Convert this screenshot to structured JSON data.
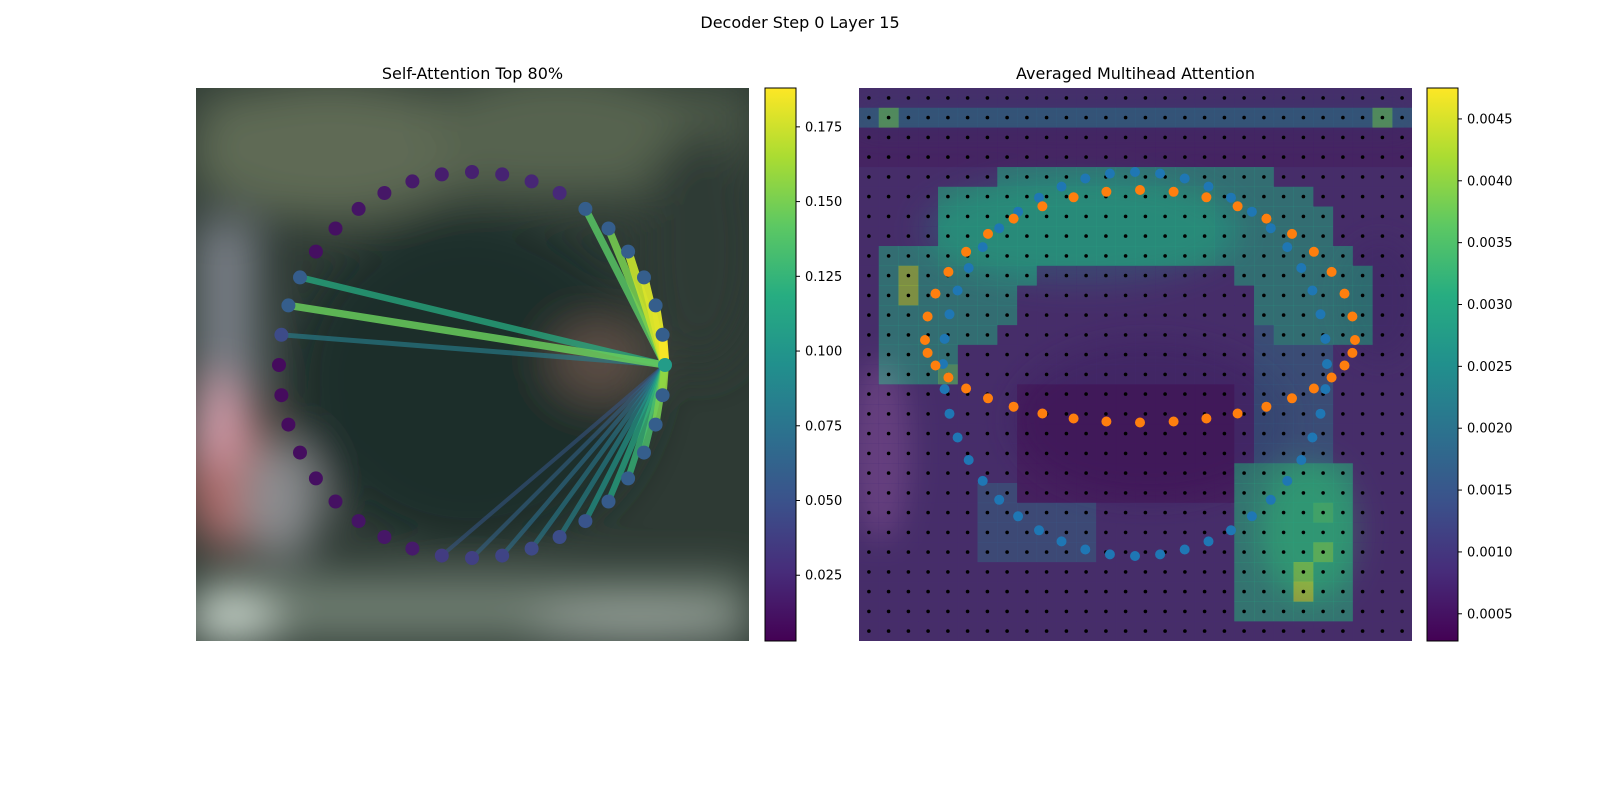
{
  "figure": {
    "suptitle": "Decoder Step 0 Layer 15"
  },
  "chart_data": [
    {
      "type": "network",
      "title": "Self-Attention Top 80%",
      "node_count": 40,
      "query_node": 0,
      "node_layout": "circle",
      "edges": [
        {
          "to": 1,
          "weight": 0.186
        },
        {
          "to": 2,
          "weight": 0.18
        },
        {
          "to": 3,
          "weight": 0.178
        },
        {
          "to": 4,
          "weight": 0.172
        },
        {
          "to": 5,
          "weight": 0.15
        },
        {
          "to": 6,
          "weight": 0.14
        },
        {
          "to": 39,
          "weight": 0.158
        },
        {
          "to": 38,
          "weight": 0.15
        },
        {
          "to": 37,
          "weight": 0.135
        },
        {
          "to": 36,
          "weight": 0.125
        },
        {
          "to": 35,
          "weight": 0.113
        },
        {
          "to": 34,
          "weight": 0.1
        },
        {
          "to": 33,
          "weight": 0.085
        },
        {
          "to": 32,
          "weight": 0.078
        },
        {
          "to": 31,
          "weight": 0.07
        },
        {
          "to": 30,
          "weight": 0.062
        },
        {
          "to": 29,
          "weight": 0.055
        },
        {
          "to": 19,
          "weight": 0.082
        },
        {
          "to": 18,
          "weight": 0.145
        },
        {
          "to": 17,
          "weight": 0.118
        }
      ],
      "colorbar": {
        "colormap": "viridis",
        "range": [
          0.003,
          0.188
        ],
        "ticks": [
          "0.025",
          "0.050",
          "0.075",
          "0.100",
          "0.125",
          "0.150",
          "0.175"
        ],
        "tick_values": [
          0.025,
          0.05,
          0.075,
          0.1,
          0.125,
          0.15,
          0.175
        ]
      }
    },
    {
      "type": "heatmap",
      "title": "Averaged Multihead Attention",
      "grid": [
        28,
        28
      ],
      "grid_points": "black dots at every cell center",
      "hotspots": [
        {
          "row": 1,
          "col": 1,
          "value": 0.0037
        },
        {
          "row": 1,
          "col": 26,
          "value": 0.0037
        },
        {
          "row": 9,
          "col": 2,
          "value": 0.0042
        },
        {
          "row": 10,
          "col": 2,
          "value": 0.0042
        },
        {
          "row": 14,
          "col": 4,
          "value": 0.0036
        },
        {
          "row": 25,
          "col": 22,
          "value": 0.0044
        },
        {
          "row": 24,
          "col": 22,
          "value": 0.004
        },
        {
          "row": 23,
          "col": 23,
          "value": 0.0038
        },
        {
          "row": 21,
          "col": 23,
          "value": 0.0034
        }
      ],
      "series": [
        {
          "color": "#1f77b4",
          "marker": "circle",
          "points": 48
        },
        {
          "color": "#ff7f0e",
          "marker": "circle",
          "points": 40
        }
      ],
      "colorbar": {
        "colormap": "viridis",
        "range": [
          0.00028,
          0.00475
        ],
        "ticks": [
          "0.0005",
          "0.0010",
          "0.0015",
          "0.0020",
          "0.0025",
          "0.0030",
          "0.0035",
          "0.0040",
          "0.0045"
        ],
        "tick_values": [
          0.0005,
          0.001,
          0.0015,
          0.002,
          0.0025,
          0.003,
          0.0035,
          0.004,
          0.0045
        ]
      }
    }
  ]
}
